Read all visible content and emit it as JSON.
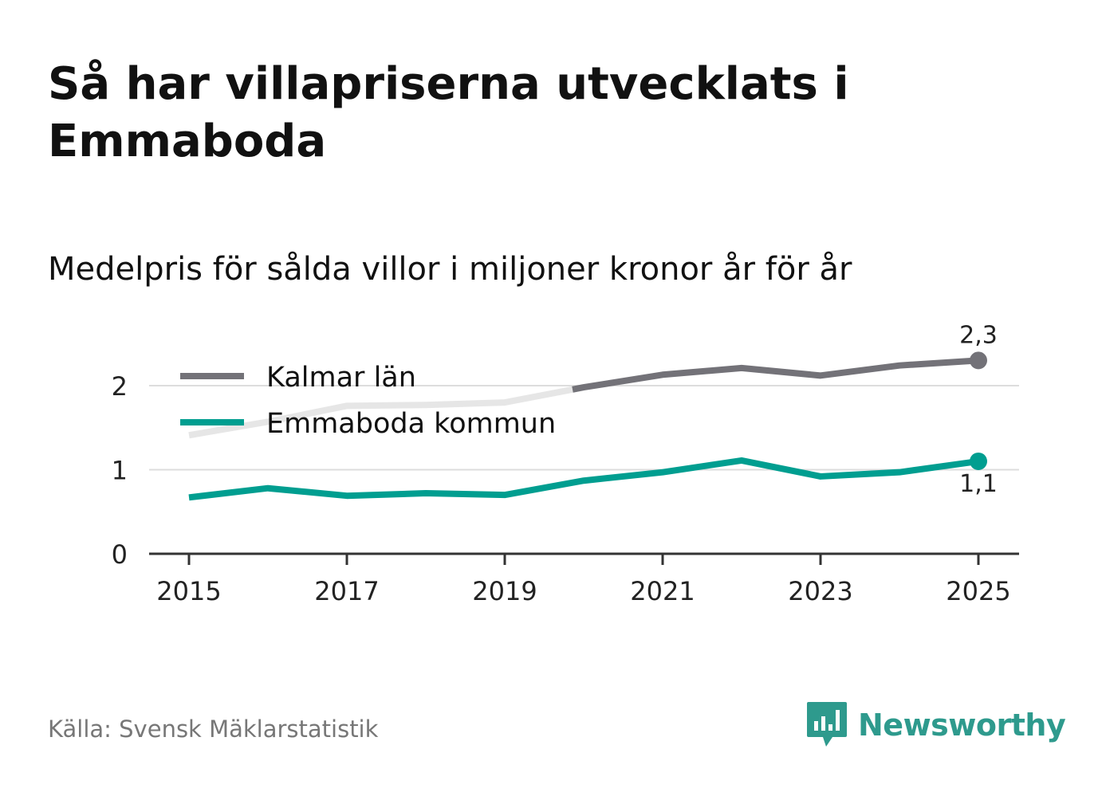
{
  "title": "Så har villapriserna utvecklats i Emmaboda",
  "subtitle": "Medelpris för sålda villor i miljoner kronor år för år",
  "source": "Källa: Svensk Mäklarstatistik",
  "brand": {
    "name": "Newsworthy",
    "icon": "newsworthy-logo-icon"
  },
  "colors": {
    "kalmar": "#737278",
    "kalmar_faded": "#e6e6e6",
    "emmaboda": "#009e90",
    "grid": "#dddddd",
    "axis": "#333333",
    "brand": "#2e9a8d"
  },
  "chart_data": {
    "type": "line",
    "title": "Så har villapriserna utvecklats i Emmaboda",
    "subtitle": "Medelpris för sålda villor i miljoner kronor år för år",
    "xlabel": "",
    "ylabel": "",
    "x": [
      2015,
      2016,
      2017,
      2018,
      2019,
      2020,
      2021,
      2022,
      2023,
      2024,
      2025
    ],
    "x_ticks": [
      "2015",
      "2017",
      "2019",
      "2021",
      "2023",
      "2025"
    ],
    "y_ticks": [
      "0",
      "1",
      "2"
    ],
    "ylim": [
      0,
      2.4
    ],
    "xlim": [
      2014.5,
      2025.5
    ],
    "grid": true,
    "legend_position": "top-left",
    "series": [
      {
        "name": "Kalmar län",
        "values": [
          1.41,
          1.57,
          1.76,
          1.77,
          1.8,
          1.98,
          2.13,
          2.21,
          2.12,
          2.24,
          2.3
        ],
        "end_label": "2,3"
      },
      {
        "name": "Emmaboda kommun",
        "values": [
          0.67,
          0.78,
          0.69,
          0.72,
          0.7,
          0.87,
          0.97,
          1.11,
          0.92,
          0.97,
          1.1
        ],
        "end_label": "1,1"
      }
    ]
  }
}
